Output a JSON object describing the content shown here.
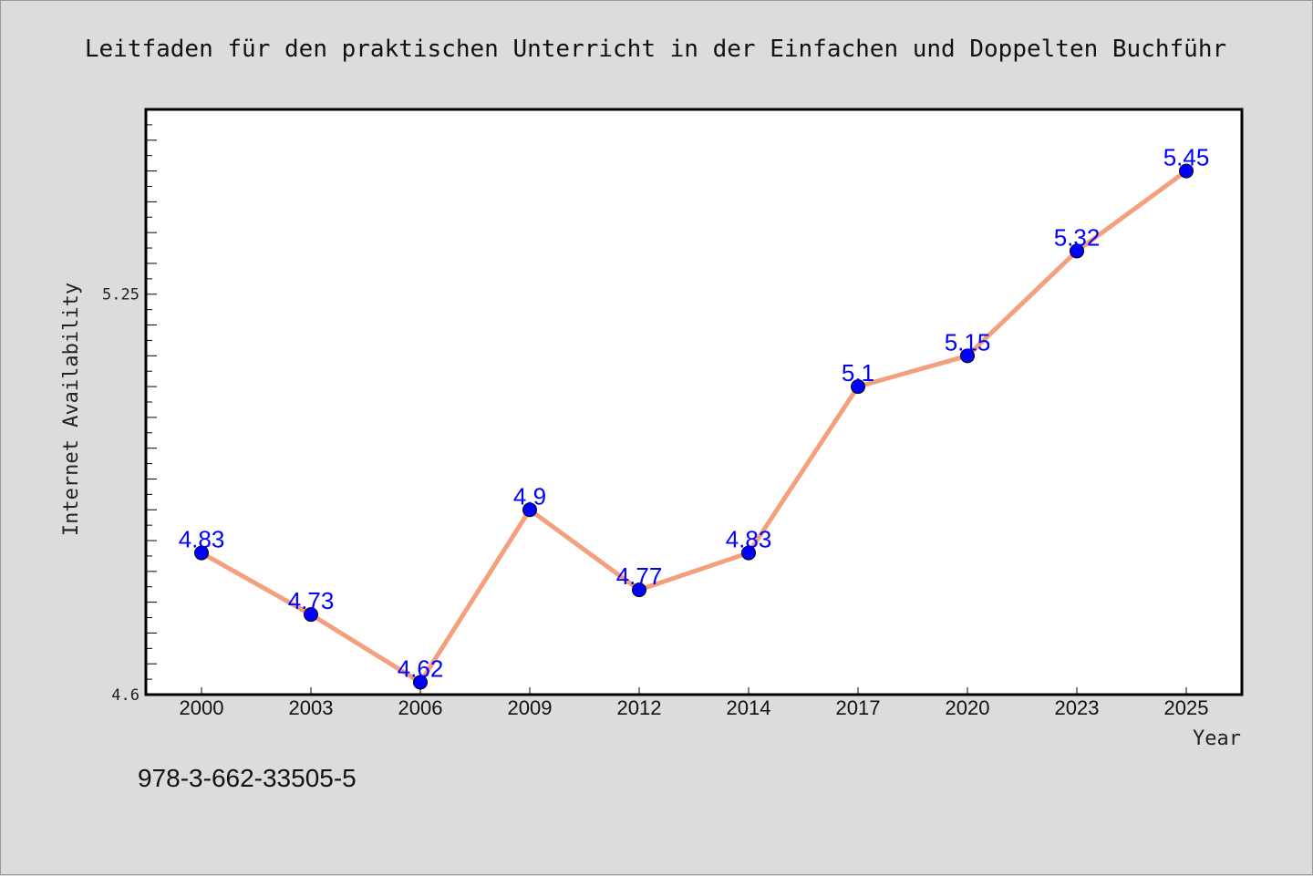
{
  "chart_data": {
    "type": "line",
    "title": "Leitfaden für den praktischen Unterricht in der Einfachen und Doppelten Buchführ",
    "xlabel": "Year",
    "ylabel": "Internet Availability",
    "categories": [
      "2000",
      "2003",
      "2006",
      "2009",
      "2012",
      "2014",
      "2017",
      "2020",
      "2023",
      "2025"
    ],
    "values": [
      4.83,
      4.73,
      4.62,
      4.9,
      4.77,
      4.83,
      5.1,
      5.15,
      5.32,
      5.45
    ],
    "data_labels": [
      "4.83",
      "4.73",
      "4.62",
      "4.9",
      "4.77",
      "4.83",
      "5.1",
      "5.15",
      "5.32",
      "5.45"
    ],
    "ylim": [
      4.6,
      5.55
    ],
    "y_ticks": [
      4.6,
      5.25
    ],
    "y_tick_labels": [
      "4.6",
      "5.25"
    ],
    "grid": false,
    "legend": "none",
    "line_color": "#f4a07e",
    "marker_color": "#0000ff",
    "label_color": "#0000ff"
  },
  "footnote": "978-3-662-33505-5"
}
